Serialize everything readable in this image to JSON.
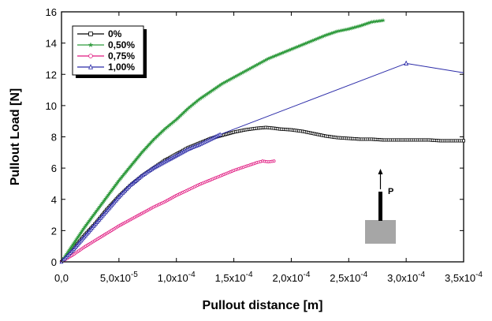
{
  "chart_data": {
    "type": "line",
    "xlabel": "Pullout distance [m]",
    "ylabel": "Pullout Load [N]",
    "xlim": [
      0,
      0.00035
    ],
    "ylim": [
      0,
      16
    ],
    "xticks": [
      0,
      5e-05,
      0.0001,
      0.00015,
      0.0002,
      0.00025,
      0.0003,
      0.00035
    ],
    "xtick_labels": [
      {
        "mant": "0,0",
        "exp": ""
      },
      {
        "mant": "5,0x10",
        "exp": "-5"
      },
      {
        "mant": "1,0x10",
        "exp": "-4"
      },
      {
        "mant": "1,5x10",
        "exp": "-4"
      },
      {
        "mant": "2,0x10",
        "exp": "-4"
      },
      {
        "mant": "2,5x10",
        "exp": "-4"
      },
      {
        "mant": "3,0x10",
        "exp": "-4"
      },
      {
        "mant": "3,5x10",
        "exp": "-4"
      }
    ],
    "yticks": [
      0,
      2,
      4,
      6,
      8,
      10,
      12,
      14,
      16
    ],
    "ytick_labels": [
      "0",
      "2",
      "4",
      "6",
      "8",
      "10",
      "12",
      "14",
      "16"
    ],
    "legend_position": "top-left",
    "series": [
      {
        "name": "0%",
        "color": "#000000",
        "marker": "square",
        "x": [
          0,
          1e-05,
          2e-05,
          3e-05,
          4e-05,
          5e-05,
          6e-05,
          7e-05,
          8e-05,
          9e-05,
          0.0001,
          0.00011,
          0.00012,
          0.00013,
          0.00014,
          0.00015,
          0.00016,
          0.00017,
          0.000178,
          0.000185,
          0.00019,
          0.0002,
          0.00021,
          0.00022,
          0.00023,
          0.00024,
          0.00025,
          0.00026,
          0.00027,
          0.00028,
          0.00029,
          0.0003,
          0.00031,
          0.00032,
          0.00033,
          0.00034,
          0.00035
        ],
        "y": [
          0,
          0.8,
          1.7,
          2.5,
          3.4,
          4.2,
          4.9,
          5.5,
          6.0,
          6.5,
          6.9,
          7.3,
          7.6,
          7.9,
          8.1,
          8.3,
          8.45,
          8.55,
          8.6,
          8.55,
          8.5,
          8.45,
          8.35,
          8.2,
          8.05,
          7.95,
          7.9,
          7.85,
          7.85,
          7.8,
          7.8,
          7.8,
          7.8,
          7.8,
          7.75,
          7.75,
          7.75
        ]
      },
      {
        "name": "0,50%",
        "color": "#2e9a3c",
        "marker": "star",
        "x": [
          0,
          1e-05,
          2e-05,
          3e-05,
          4e-05,
          5e-05,
          6e-05,
          7e-05,
          8e-05,
          9e-05,
          0.0001,
          0.00011,
          0.00012,
          0.00013,
          0.00014,
          0.00015,
          0.00016,
          0.00017,
          0.00018,
          0.00019,
          0.0002,
          0.00021,
          0.00022,
          0.00023,
          0.00024,
          0.00025,
          0.00026,
          0.00027,
          0.00028
        ],
        "y": [
          0,
          1.1,
          2.2,
          3.2,
          4.2,
          5.2,
          6.1,
          7.0,
          7.8,
          8.5,
          9.1,
          9.8,
          10.4,
          10.9,
          11.4,
          11.8,
          12.2,
          12.6,
          13.0,
          13.3,
          13.6,
          13.9,
          14.2,
          14.5,
          14.75,
          14.9,
          15.1,
          15.35,
          15.45
        ]
      },
      {
        "name": "0,75%",
        "color": "#e0177f",
        "marker": "circle",
        "x": [
          0,
          1e-05,
          2e-05,
          3e-05,
          4e-05,
          5e-05,
          6e-05,
          7e-05,
          8e-05,
          9e-05,
          0.0001,
          0.00011,
          0.00012,
          0.00013,
          0.00014,
          0.00015,
          0.00016,
          0.00017,
          0.000175,
          0.00018,
          0.000185
        ],
        "y": [
          0,
          0.45,
          0.95,
          1.4,
          1.85,
          2.3,
          2.7,
          3.1,
          3.5,
          3.85,
          4.25,
          4.6,
          4.95,
          5.25,
          5.55,
          5.85,
          6.1,
          6.35,
          6.45,
          6.4,
          6.45
        ]
      },
      {
        "name": "1,00%",
        "color": "#2b2ba8",
        "marker": "triangle",
        "x": [
          0,
          1e-05,
          2e-05,
          3e-05,
          4e-05,
          5e-05,
          6e-05,
          7e-05,
          8e-05,
          9e-05,
          0.0001,
          0.00011,
          0.00012,
          0.00013,
          0.000138,
          0.0003,
          0.00035
        ],
        "y": [
          0,
          0.75,
          1.6,
          2.45,
          3.3,
          4.15,
          4.9,
          5.5,
          6.0,
          6.4,
          6.8,
          7.2,
          7.5,
          7.85,
          8.15,
          12.7,
          12.1
        ]
      }
    ],
    "inset": {
      "label": "P",
      "description_icon": "pullout-specimen-icon"
    }
  }
}
